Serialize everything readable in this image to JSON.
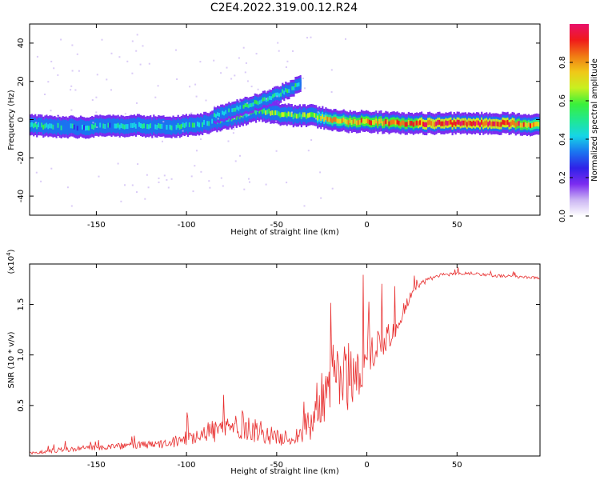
{
  "title": "C2E4.2022.319.00.12.R24",
  "colors": {
    "signal_red": "#e83030",
    "axis": "#000000",
    "colormap": [
      "#ffffff",
      "#cbb5f3",
      "#7b2cf0",
      "#2f22e8",
      "#1a74f0",
      "#16d6e6",
      "#20e890",
      "#3af03a",
      "#c8f020",
      "#f0c818",
      "#f07a14",
      "#f01a1a",
      "#e8106a"
    ]
  },
  "chart_data": [
    {
      "type": "heatmap",
      "xlabel": "Height of straight line (km)",
      "ylabel": "Frequency (Hz)",
      "xlim": [
        -187,
        96
      ],
      "ylim": [
        -50,
        50
      ],
      "xticks": [
        -150,
        -100,
        -50,
        0,
        50
      ],
      "yticks": [
        -40,
        -20,
        0,
        20,
        40
      ],
      "grid": false,
      "colorbar": {
        "label": "Normalized spectral amplitude",
        "range": [
          0,
          1
        ],
        "ticks": [
          "0.0",
          "0.2",
          "0.4",
          "0.6",
          "0.8"
        ]
      },
      "ridge": {
        "x": [
          -187,
          -160,
          -130,
          -110,
          -90,
          -75,
          -60,
          -50,
          -40,
          -30,
          -20,
          -10,
          0,
          20,
          50,
          80,
          96
        ],
        "freq": [
          -3,
          -4,
          -3,
          -4,
          -2,
          1,
          5,
          3,
          2,
          2,
          0,
          -1,
          -1,
          -2,
          -2,
          -2,
          -3
        ],
        "amplitude": [
          0.45,
          0.4,
          0.4,
          0.42,
          0.45,
          0.5,
          0.55,
          0.55,
          0.55,
          0.6,
          0.75,
          0.8,
          0.8,
          0.85,
          0.95,
          0.9,
          0.7
        ]
      },
      "branch": {
        "x": [
          -85,
          -75,
          -65,
          -55,
          -45,
          -37
        ],
        "freq": [
          2,
          5,
          8,
          11,
          15,
          19
        ],
        "amplitude": [
          0.35,
          0.45,
          0.5,
          0.5,
          0.5,
          0.45
        ]
      }
    },
    {
      "type": "line",
      "xlabel": "Height of straight line (km)",
      "ylabel": "SNR (10 * v/v)",
      "scale_label": "(x10",
      "scale_exp": "4",
      "scale_close": ")",
      "xlim": [
        -187,
        96
      ],
      "ylim": [
        0,
        19000
      ],
      "xticks": [
        -150,
        -100,
        -50,
        0,
        50
      ],
      "yticks": [
        5000,
        10000,
        15000
      ],
      "ytick_labels": [
        "0.5",
        "1.0",
        "1.5"
      ],
      "grid": false,
      "envelope": {
        "x": [
          -187,
          -170,
          -150,
          -130,
          -110,
          -100,
          -90,
          -80,
          -70,
          -60,
          -50,
          -40,
          -35,
          -30,
          -25,
          -20,
          -15,
          -10,
          -5,
          0,
          5,
          10,
          15,
          20,
          25,
          30,
          40,
          50,
          60,
          70,
          80,
          90,
          96
        ],
        "baseline": [
          200,
          500,
          700,
          900,
          1000,
          1500,
          2000,
          2000,
          2500,
          2000,
          1500,
          1500,
          2000,
          3000,
          5000,
          6000,
          6500,
          6500,
          7000,
          9000,
          10000,
          11000,
          12000,
          14000,
          16000,
          17000,
          17800,
          18000,
          18000,
          17800,
          17700,
          17600,
          17500
        ],
        "noise": [
          300,
          500,
          600,
          700,
          900,
          1500,
          2000,
          3000,
          3000,
          2500,
          1500,
          1500,
          3000,
          5000,
          6000,
          7000,
          7000,
          7000,
          6000,
          5000,
          4000,
          3500,
          2500,
          1500,
          900,
          600,
          400,
          350,
          300,
          300,
          300,
          300,
          300
        ]
      }
    }
  ]
}
